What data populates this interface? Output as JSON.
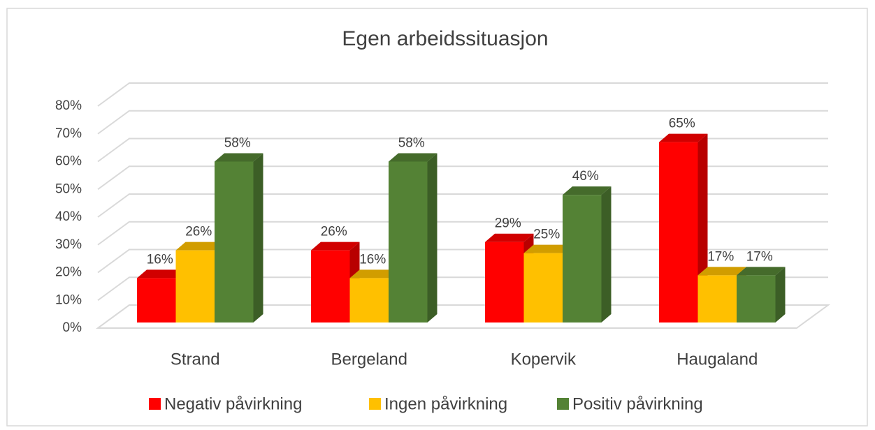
{
  "chart_data": {
    "type": "bar3d",
    "title": "Egen arbeidssituasjon",
    "categories": [
      "Strand",
      "Bergeland",
      "Kopervik",
      "Haugaland"
    ],
    "series": [
      {
        "name": "Negativ påvirkning",
        "color": "#ff0000",
        "values": [
          16,
          26,
          29,
          65
        ],
        "value_labels": [
          "16%",
          "26%",
          "29%",
          "65%"
        ]
      },
      {
        "name": "Ingen påvirkning",
        "color": "#ffc000",
        "values": [
          26,
          16,
          25,
          17
        ],
        "value_labels": [
          "26%",
          "16%",
          "25%",
          "17%"
        ]
      },
      {
        "name": "Positiv påvirkning",
        "color": "#548235",
        "values": [
          58,
          58,
          46,
          17
        ],
        "value_labels": [
          "58%",
          "58%",
          "46%",
          "17%"
        ]
      }
    ],
    "ylim": [
      0,
      80
    ],
    "yticks": [
      {
        "value": 0,
        "label": "0%"
      },
      {
        "value": 10,
        "label": "10%"
      },
      {
        "value": 20,
        "label": "20%"
      },
      {
        "value": 30,
        "label": "30%"
      },
      {
        "value": 40,
        "label": "40%"
      },
      {
        "value": 50,
        "label": "50%"
      },
      {
        "value": 60,
        "label": "60%"
      },
      {
        "value": 70,
        "label": "70%"
      },
      {
        "value": 80,
        "label": "80%"
      }
    ],
    "grid": true,
    "legend": "bottom"
  }
}
